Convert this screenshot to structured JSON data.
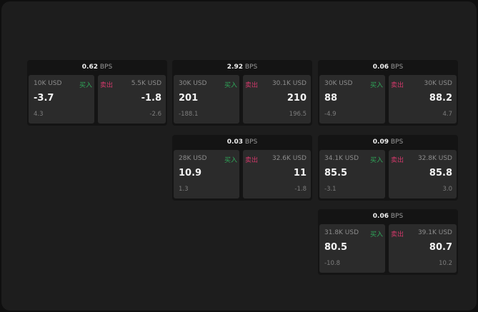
{
  "buy_label": "买入",
  "sell_label": "卖出",
  "unit": "BPS",
  "colors": {
    "buy": "#2fa85a",
    "sell": "#d2386a"
  },
  "panels": [
    {
      "spread": "0.62",
      "bid_size": "10K USD",
      "bid": "-3.7",
      "bid_change": "4.3",
      "ask_size": "5.5K USD",
      "ask": "-1.8",
      "ask_change": "-2.6"
    },
    {
      "spread": "2.92",
      "bid_size": "30K USD",
      "bid": "201",
      "bid_change": "-188.1",
      "ask_size": "30.1K USD",
      "ask": "210",
      "ask_change": "196.5"
    },
    {
      "spread": "0.06",
      "bid_size": "30K USD",
      "bid": "88",
      "bid_change": "-4.9",
      "ask_size": "30K USD",
      "ask": "88.2",
      "ask_change": "4.7"
    },
    {
      "spread": "0.03",
      "bid_size": "28K USD",
      "bid": "10.9",
      "bid_change": "1.3",
      "ask_size": "32.6K USD",
      "ask": "11",
      "ask_change": "-1.8"
    },
    {
      "spread": "0.09",
      "bid_size": "34.1K USD",
      "bid": "85.5",
      "bid_change": "-3.1",
      "ask_size": "32.8K USD",
      "ask": "85.8",
      "ask_change": "3.0"
    },
    {
      "spread": "0.06",
      "bid_size": "31.8K USD",
      "bid": "80.5",
      "bid_change": "-10.8",
      "ask_size": "39.1K USD",
      "ask": "80.7",
      "ask_change": "10.2"
    }
  ]
}
